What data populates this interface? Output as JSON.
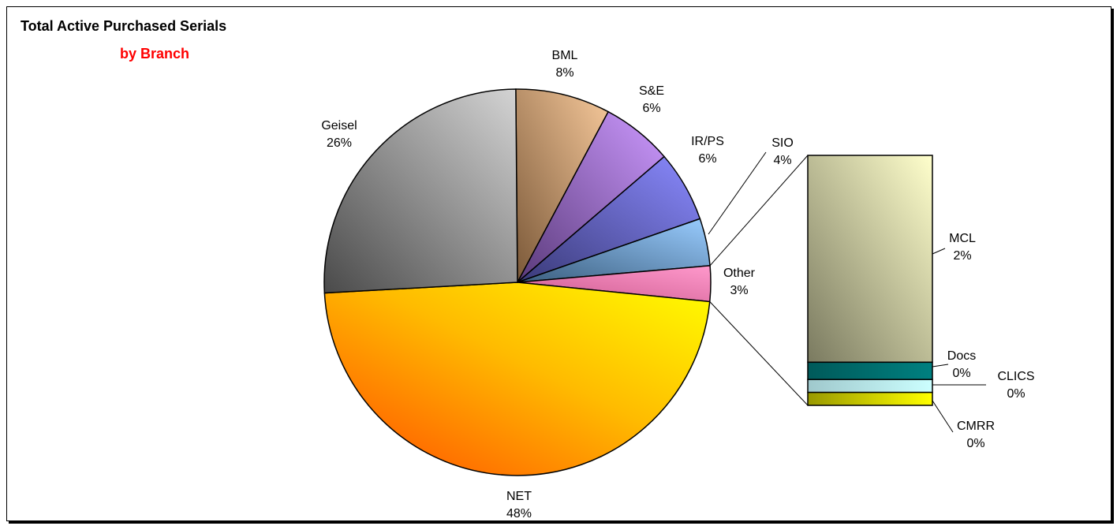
{
  "chart_data": {
    "type": "pie",
    "variant": "bar-of-pie",
    "title": "Total Active Purchased Serials",
    "subtitle": "by Branch",
    "subtitle_color": "#ff0000",
    "slices": [
      {
        "label": "BML",
        "pct_label": "8%",
        "value": 8,
        "color": "#f4c79b"
      },
      {
        "label": "S&E",
        "pct_label": "6%",
        "value": 6,
        "color": "#c497f1"
      },
      {
        "label": "IR/PS",
        "pct_label": "6%",
        "value": 6,
        "color": "#8686f2"
      },
      {
        "label": "SIO",
        "pct_label": "4%",
        "value": 4,
        "color": "#8fc4f2"
      },
      {
        "label": "Other",
        "pct_label": "3%",
        "value": 3,
        "color": "#f08ec9"
      },
      {
        "label": "NET",
        "pct_label": "48%",
        "value": 48,
        "color": "#ffd400"
      },
      {
        "label": "Geisel",
        "pct_label": "26%",
        "value": 26,
        "color": "#b8b8b8"
      }
    ],
    "other_breakdown": [
      {
        "label": "MCL",
        "pct_label": "2%",
        "value": 2.4,
        "color": "#e9e8bd"
      },
      {
        "label": "Docs",
        "pct_label": "0%",
        "value": 0.2,
        "color": "#006666"
      },
      {
        "label": "CLICS",
        "pct_label": "0%",
        "value": 0.15,
        "color": "#c4eef2"
      },
      {
        "label": "CMRR",
        "pct_label": "0%",
        "value": 0.15,
        "color": "#d6d600"
      }
    ],
    "legend": "none",
    "grid": false
  }
}
